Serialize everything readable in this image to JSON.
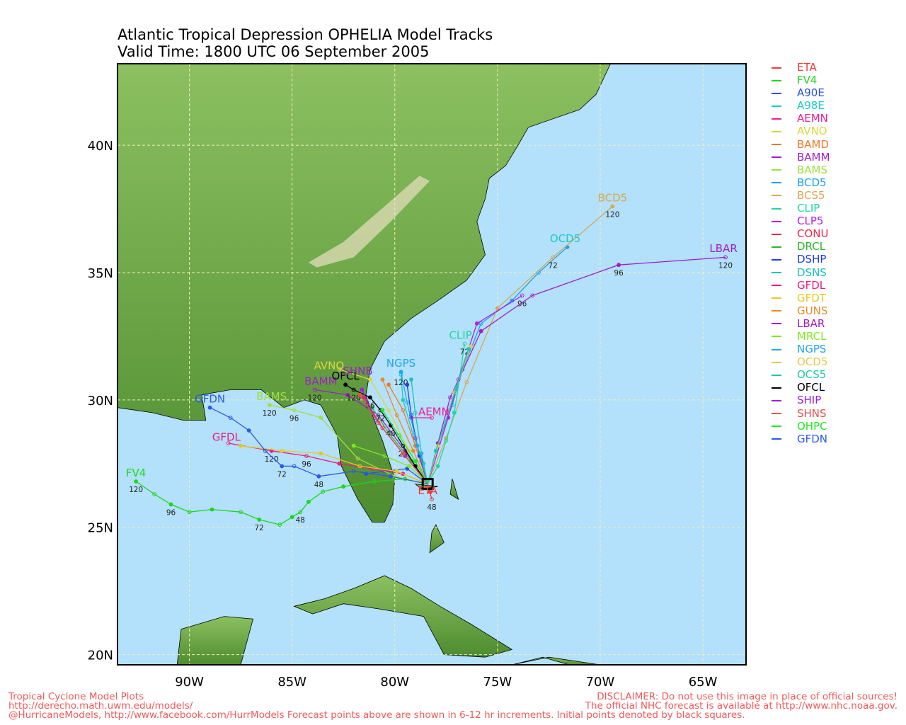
{
  "title": {
    "line1": "Atlantic Tropical Depression OPHELIA Model Tracks",
    "line2": "Valid Time: 1800 UTC 06 September 2005"
  },
  "map": {
    "lon_range": [
      -93.5,
      -62.9
    ],
    "lat_range": [
      19.6,
      43.2
    ],
    "lon_ticks": [
      -90,
      -85,
      -80,
      -75,
      -70,
      -65
    ],
    "lon_tick_labels": [
      "90W",
      "85W",
      "80W",
      "75W",
      "70W",
      "65W"
    ],
    "lat_ticks": [
      20,
      25,
      30,
      35,
      40
    ],
    "lat_tick_labels": [
      "20N",
      "25N",
      "30N",
      "35N",
      "40N"
    ],
    "colors": {
      "ocean": "#b3e0fa",
      "land_low": "#5e9a3a",
      "land_high": "#e8e0c0",
      "grid": "#f0f0c0"
    },
    "start_point": {
      "lon": -78.4,
      "lat": 26.7
    },
    "tracks": [
      {
        "name": "ETA",
        "color": "#f03a3a",
        "points": [
          [
            -78.4,
            26.7
          ],
          [
            -78.3,
            26.4
          ],
          [
            -78.2,
            26.1
          ]
        ],
        "hours": [
          [
            2,
            "48"
          ]
        ]
      },
      {
        "name": "FV4",
        "color": "#1ad81a",
        "points": [
          [
            -78.4,
            26.7
          ],
          [
            -79.5,
            26.9
          ],
          [
            -81,
            26.8
          ],
          [
            -82.5,
            26.6
          ],
          [
            -83.5,
            26.4
          ],
          [
            -84.2,
            26.0
          ],
          [
            -84.6,
            25.6
          ],
          [
            -85.0,
            25.4
          ],
          [
            -85.6,
            25.1
          ],
          [
            -86.6,
            25.3
          ],
          [
            -87.5,
            25.6
          ],
          [
            -88.9,
            25.7
          ],
          [
            -90.0,
            25.6
          ],
          [
            -90.9,
            25.9
          ],
          [
            -91.7,
            26.3
          ],
          [
            -92.6,
            26.8
          ]
        ],
        "hours": [
          [
            6,
            "48"
          ],
          [
            9,
            "72"
          ],
          [
            13,
            "96"
          ],
          [
            15,
            "120"
          ]
        ]
      },
      {
        "name": "A90E",
        "color": "#2a50e8",
        "points": [
          [
            -78.4,
            26.7
          ],
          [
            -79.4,
            27.3
          ],
          [
            -80.5,
            27.2
          ],
          [
            -81.4,
            27.1
          ]
        ],
        "hours": []
      },
      {
        "name": "A98E",
        "color": "#1ec8c8",
        "points": [
          [
            -78.4,
            26.7
          ],
          [
            -78.6,
            27.5
          ],
          [
            -79.1,
            28.6
          ],
          [
            -79.6,
            30.0
          ],
          [
            -79.7,
            31.0
          ]
        ],
        "hours": [
          [
            4,
            "120"
          ]
        ]
      },
      {
        "name": "AEMN",
        "color": "#f01e96",
        "points": [
          [
            -78.4,
            26.7
          ],
          [
            -78.7,
            27.6
          ],
          [
            -79.0,
            28.5
          ],
          [
            -79.2,
            29.3
          ],
          [
            -78.2,
            29.3
          ]
        ],
        "hours": []
      },
      {
        "name": "AVNO",
        "color": "#d8d83a",
        "points": [
          [
            -78.4,
            26.7
          ],
          [
            -79.3,
            28.0
          ],
          [
            -80.3,
            29.6
          ],
          [
            -81.2,
            30.8
          ],
          [
            -82.7,
            31.2
          ]
        ],
        "hours": []
      },
      {
        "name": "BAMD",
        "color": "#f07828",
        "points": [
          [
            -78.4,
            26.7
          ],
          [
            -79.0,
            28.2
          ],
          [
            -79.6,
            29.6
          ],
          [
            -80.3,
            30.6
          ]
        ],
        "hours": []
      },
      {
        "name": "BAMM",
        "color": "#a01ec8",
        "points": [
          [
            -78.4,
            26.7
          ],
          [
            -79.5,
            28.0
          ],
          [
            -80.8,
            29.4
          ],
          [
            -82.3,
            30.2
          ],
          [
            -83.9,
            30.4
          ]
        ],
        "hours": [
          [
            4,
            "120"
          ]
        ]
      },
      {
        "name": "BAMS",
        "color": "#a0e040",
        "points": [
          [
            -78.4,
            26.7
          ],
          [
            -80.0,
            27.0
          ],
          [
            -81.8,
            27.7
          ],
          [
            -83.6,
            29.3
          ],
          [
            -84.9,
            29.6
          ],
          [
            -86.1,
            29.8
          ]
        ],
        "hours": [
          [
            4,
            "96"
          ],
          [
            5,
            "120"
          ]
        ]
      },
      {
        "name": "BCD5",
        "color": "#1ea0f0",
        "points": [
          [
            -78.4,
            26.7
          ],
          [
            -78.0,
            28.0
          ],
          [
            -77.2,
            29.8
          ],
          [
            -76.7,
            31.2
          ],
          [
            -75.8,
            33.0
          ],
          [
            -74.3,
            33.9
          ],
          [
            -73.0,
            35.0
          ],
          [
            -71.6,
            36.0
          ]
        ],
        "hours": []
      },
      {
        "name": "BCS5",
        "color": "#d8a850",
        "points": [
          [
            -78.4,
            26.7
          ],
          [
            -77.5,
            28.5
          ],
          [
            -76.5,
            30.7
          ],
          [
            -75.0,
            33.6
          ],
          [
            -72.3,
            35.6
          ],
          [
            -69.4,
            37.6
          ]
        ],
        "hours": [
          [
            4,
            "72"
          ],
          [
            5,
            "120"
          ]
        ]
      },
      {
        "name": "CLIP",
        "color": "#1ed8a0",
        "points": [
          [
            -78.4,
            26.7
          ],
          [
            -77.9,
            27.4
          ],
          [
            -77.5,
            28.4
          ],
          [
            -77.1,
            29.5
          ],
          [
            -76.6,
            32.2
          ]
        ],
        "hours": [
          [
            4,
            "72"
          ]
        ]
      },
      {
        "name": "CLP5",
        "color": "#b41ee8",
        "points": [
          [
            -78.4,
            26.7
          ],
          [
            -77.4,
            29.3
          ],
          [
            -76.9,
            30.8
          ],
          [
            -76.0,
            33.0
          ],
          [
            -73.8,
            34.1
          ]
        ],
        "hours": [
          [
            4,
            "96"
          ]
        ]
      },
      {
        "name": "CONU",
        "color": "#e82a50",
        "points": [
          [
            -78.4,
            26.7
          ],
          [
            -79.5,
            27.8
          ],
          [
            -80.6,
            28.9
          ],
          [
            -81.5,
            30.1
          ]
        ],
        "hours": []
      },
      {
        "name": "DRCL",
        "color": "#2ab82a",
        "points": [
          [
            -78.4,
            26.7
          ],
          [
            -79.2,
            27.6
          ],
          [
            -80.3,
            28.7
          ],
          [
            -81.1,
            29.7
          ]
        ],
        "hours": []
      },
      {
        "name": "DSHP",
        "color": "#1e3ce8",
        "points": [
          [
            -78.4,
            26.7
          ],
          [
            -78.8,
            27.8
          ],
          [
            -79.2,
            29.4
          ],
          [
            -79.4,
            30.6
          ]
        ],
        "hours": []
      },
      {
        "name": "DSNS",
        "color": "#1ec0c0",
        "points": [
          [
            -78.4,
            26.7
          ],
          [
            -78.7,
            27.9
          ],
          [
            -79.0,
            29.5
          ],
          [
            -79.2,
            30.8
          ]
        ],
        "hours": []
      },
      {
        "name": "GFDL",
        "color": "#e81e7a",
        "points": [
          [
            -78.4,
            26.7
          ],
          [
            -79.6,
            27.1
          ],
          [
            -81.1,
            27.3
          ],
          [
            -82.7,
            27.5
          ],
          [
            -84.3,
            27.8
          ],
          [
            -86.0,
            28.0
          ],
          [
            -88.1,
            28.3
          ]
        ],
        "hours": [
          [
            4,
            "96"
          ],
          [
            5,
            "120"
          ]
        ]
      },
      {
        "name": "GFDT",
        "color": "#e8c81e",
        "points": [
          [
            -78.4,
            26.7
          ],
          [
            -79.9,
            27.2
          ],
          [
            -81.7,
            27.4
          ],
          [
            -83.6,
            27.9
          ],
          [
            -85.5,
            28.0
          ],
          [
            -87.5,
            28.2
          ]
        ],
        "hours": []
      },
      {
        "name": "GUNS",
        "color": "#e88a2a",
        "points": [
          [
            -78.4,
            26.7
          ],
          [
            -79.1,
            28.0
          ],
          [
            -79.9,
            29.4
          ],
          [
            -80.6,
            30.8
          ]
        ],
        "hours": []
      },
      {
        "name": "LBAR",
        "color": "#a01ec8",
        "points": [
          [
            -78.4,
            26.7
          ],
          [
            -77.9,
            28.3
          ],
          [
            -77.3,
            30.1
          ],
          [
            -75.8,
            32.7
          ],
          [
            -73.3,
            34.1
          ],
          [
            -69.1,
            35.3
          ],
          [
            -63.9,
            35.6
          ]
        ],
        "hours": [
          [
            5,
            "96"
          ],
          [
            6,
            "120"
          ]
        ]
      },
      {
        "name": "MRCL",
        "color": "#80e81e",
        "points": [
          [
            -78.4,
            26.7
          ],
          [
            -79.3,
            27.4
          ],
          [
            -80.5,
            27.8
          ],
          [
            -82.0,
            28.2
          ]
        ],
        "hours": []
      },
      {
        "name": "NGPS",
        "color": "#1ea8e8",
        "points": [
          [
            -78.4,
            26.7
          ],
          [
            -78.9,
            28.2
          ],
          [
            -79.4,
            29.9
          ],
          [
            -79.7,
            31.1
          ]
        ],
        "hours": []
      },
      {
        "name": "OCD5",
        "color": "#e8c850",
        "points": [
          [
            -78.4,
            26.7
          ],
          [
            -77.9,
            28.2
          ],
          [
            -77.1,
            30.3
          ],
          [
            -76.3,
            32.1
          ]
        ],
        "hours": []
      },
      {
        "name": "OCS5",
        "color": "#1ec8a8",
        "points": [
          [
            -78.4,
            26.7
          ],
          [
            -78.0,
            28.0
          ],
          [
            -77.0,
            30.5
          ],
          [
            -76.4,
            32.0
          ]
        ],
        "hours": []
      },
      {
        "name": "OFCL",
        "color": "#000000",
        "points": [
          [
            -78.4,
            26.7
          ],
          [
            -79.0,
            27.4
          ],
          [
            -79.6,
            28.2
          ],
          [
            -80.2,
            29.0
          ],
          [
            -80.7,
            29.6
          ],
          [
            -81.2,
            30.1
          ],
          [
            -82.0,
            30.4
          ],
          [
            -82.4,
            30.6
          ]
        ],
        "hours": [
          [
            2,
            "24"
          ],
          [
            3,
            "48"
          ],
          [
            4,
            "72"
          ],
          [
            5,
            "96"
          ],
          [
            6,
            "120"
          ]
        ]
      },
      {
        "name": "SHIP",
        "color": "#9a1ee8",
        "points": [
          [
            -78.4,
            26.7
          ],
          [
            -79.5,
            27.8
          ],
          [
            -80.9,
            29.2
          ],
          [
            -81.6,
            30.4
          ]
        ],
        "hours": []
      },
      {
        "name": "SHNS",
        "color": "#e85050",
        "points": [
          [
            -78.4,
            26.7
          ],
          [
            -79.6,
            27.9
          ],
          [
            -80.8,
            29.1
          ],
          [
            -81.7,
            30.2
          ]
        ],
        "hours": []
      },
      {
        "name": "OHPC",
        "color": "#1ee81e",
        "points": [
          [
            -78.4,
            26.7
          ],
          [
            -79.0,
            27.6
          ],
          [
            -79.8,
            28.6
          ],
          [
            -80.6,
            29.6
          ]
        ],
        "hours": []
      },
      {
        "name": "GFDN",
        "color": "#2a5ae8",
        "points": [
          [
            -78.4,
            26.7
          ],
          [
            -80.2,
            27.0
          ],
          [
            -82.0,
            27.2
          ],
          [
            -83.7,
            27.0
          ],
          [
            -84.9,
            27.4
          ],
          [
            -85.5,
            27.4
          ],
          [
            -86.3,
            28.0
          ],
          [
            -87.1,
            28.8
          ],
          [
            -88.0,
            29.3
          ],
          [
            -89.0,
            29.7
          ]
        ],
        "hours": [
          [
            3,
            "48"
          ],
          [
            5,
            "72"
          ]
        ]
      }
    ],
    "labels": [
      {
        "text": "ETA",
        "lon": -78.4,
        "lat": 26.3,
        "color": "#f03a3a"
      },
      {
        "text": "FV4",
        "lon": -92.6,
        "lat": 27.0,
        "color": "#1ad81a"
      },
      {
        "text": "AEMN",
        "lon": -78.1,
        "lat": 29.4,
        "color": "#f01e96"
      },
      {
        "text": "AVNO",
        "lon": -83.2,
        "lat": 31.2,
        "color": "#d8d83a"
      },
      {
        "text": "BAMM",
        "lon": -83.6,
        "lat": 30.6,
        "color": "#a01ec8"
      },
      {
        "text": "BAMS",
        "lon": -86.0,
        "lat": 30.0,
        "color": "#a0e040"
      },
      {
        "text": "BCD5",
        "lon": -69.4,
        "lat": 37.8,
        "color": "#d8a850"
      },
      {
        "text": "OCD5",
        "lon": -71.7,
        "lat": 36.2,
        "color": "#1ec8c8"
      },
      {
        "text": "CLIP",
        "lon": -76.8,
        "lat": 32.4,
        "color": "#1ed8a0"
      },
      {
        "text": "LBAR",
        "lon": -64.0,
        "lat": 35.8,
        "color": "#a01ec8"
      },
      {
        "text": "NGPS",
        "lon": -79.7,
        "lat": 31.3,
        "color": "#1ea8e8"
      },
      {
        "text": "OFCL",
        "lon": -82.4,
        "lat": 30.8,
        "color": "#000000"
      },
      {
        "text": "SHNB",
        "lon": -81.8,
        "lat": 31.0,
        "color": "#a01ec8"
      },
      {
        "text": "GFDL",
        "lon": -88.2,
        "lat": 28.4,
        "color": "#e81e7a"
      },
      {
        "text": "GFDN",
        "lon": -89.0,
        "lat": 29.9,
        "color": "#2a5ae8"
      }
    ]
  },
  "legend": [
    {
      "name": "ETA",
      "color": "#f03a3a"
    },
    {
      "name": "FV4",
      "color": "#1ad81a"
    },
    {
      "name": "A90E",
      "color": "#2a50e8"
    },
    {
      "name": "A98E",
      "color": "#1ec8c8"
    },
    {
      "name": "AEMN",
      "color": "#f01e96"
    },
    {
      "name": "AVNO",
      "color": "#d8d83a"
    },
    {
      "name": "BAMD",
      "color": "#f07828"
    },
    {
      "name": "BAMM",
      "color": "#a01ec8"
    },
    {
      "name": "BAMS",
      "color": "#a0e040"
    },
    {
      "name": "BCD5",
      "color": "#1ea0f0"
    },
    {
      "name": "BCS5",
      "color": "#d8a850"
    },
    {
      "name": "CLIP",
      "color": "#1ed8a0"
    },
    {
      "name": "CLP5",
      "color": "#b41ee8"
    },
    {
      "name": "CONU",
      "color": "#e82a50"
    },
    {
      "name": "DRCL",
      "color": "#2ab82a"
    },
    {
      "name": "DSHP",
      "color": "#1e3ce8"
    },
    {
      "name": "DSNS",
      "color": "#1ec0c0"
    },
    {
      "name": "GFDL",
      "color": "#e81e7a"
    },
    {
      "name": "GFDT",
      "color": "#e8c81e"
    },
    {
      "name": "GUNS",
      "color": "#e88a2a"
    },
    {
      "name": "LBAR",
      "color": "#a01ec8"
    },
    {
      "name": "MRCL",
      "color": "#80e81e"
    },
    {
      "name": "NGPS",
      "color": "#1ea8e8"
    },
    {
      "name": "OCD5",
      "color": "#e8c850"
    },
    {
      "name": "OCS5",
      "color": "#1ec8a8"
    },
    {
      "name": "OFCL",
      "color": "#000000"
    },
    {
      "name": "SHIP",
      "color": "#9a1ee8"
    },
    {
      "name": "SHNS",
      "color": "#e85050"
    },
    {
      "name": "OHPC",
      "color": "#1ee81e"
    },
    {
      "name": "GFDN",
      "color": "#2a5ae8"
    }
  ],
  "footer": {
    "left": [
      "Tropical Cyclone Model Plots",
      "http://derecho.math.uwm.edu/models/",
      "@HurricaneModels, http://www.facebook.com/HurrModels  Forecast points above are shown in 6-12 hr increments. Initial points denoted by black squares."
    ],
    "right": [
      "DISCLAIMER: Do not use this image in place of official sources!",
      "The official NHC forecast is available at http://www.nhc.noaa.gov."
    ]
  }
}
